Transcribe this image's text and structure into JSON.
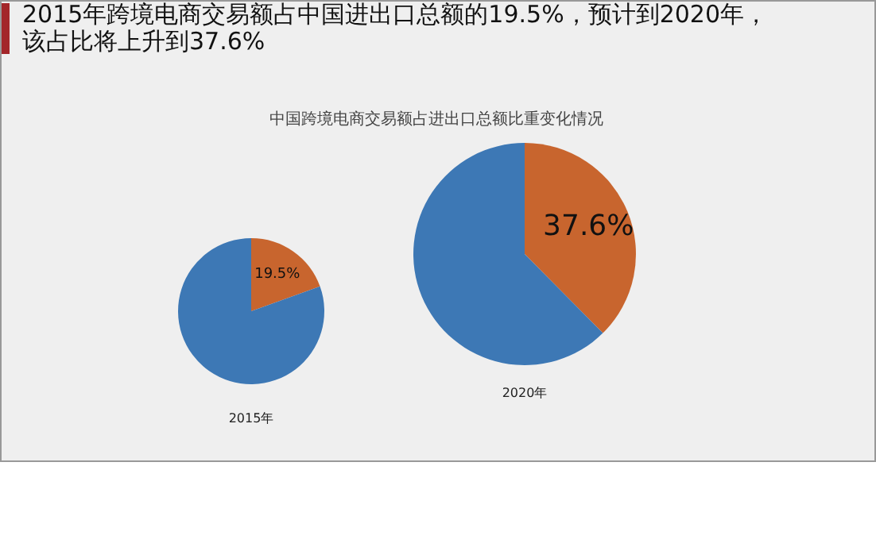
{
  "chart_data": [
    {
      "type": "pie",
      "title": "2015年跨境电商交易额占中国进出口总额的19.5%，预计到2020年，该占比将上升到37.6%",
      "subtitle": "中国跨境电商交易额占进出口总额比重变化情况",
      "xlabel": "2015年",
      "categories": [
        null,
        null
      ],
      "values": [
        19.5,
        80.5
      ],
      "colors": [
        "#c8652e",
        "#3d78b5"
      ],
      "value_labels": [
        "19.5%",
        null
      ]
    },
    {
      "type": "pie",
      "xlabel": "2020年",
      "categories": [
        null,
        null
      ],
      "values": [
        37.6,
        62.4
      ],
      "colors": [
        "#c8652e",
        "#3d78b5"
      ],
      "value_labels": [
        "37.6%",
        null
      ]
    }
  ]
}
